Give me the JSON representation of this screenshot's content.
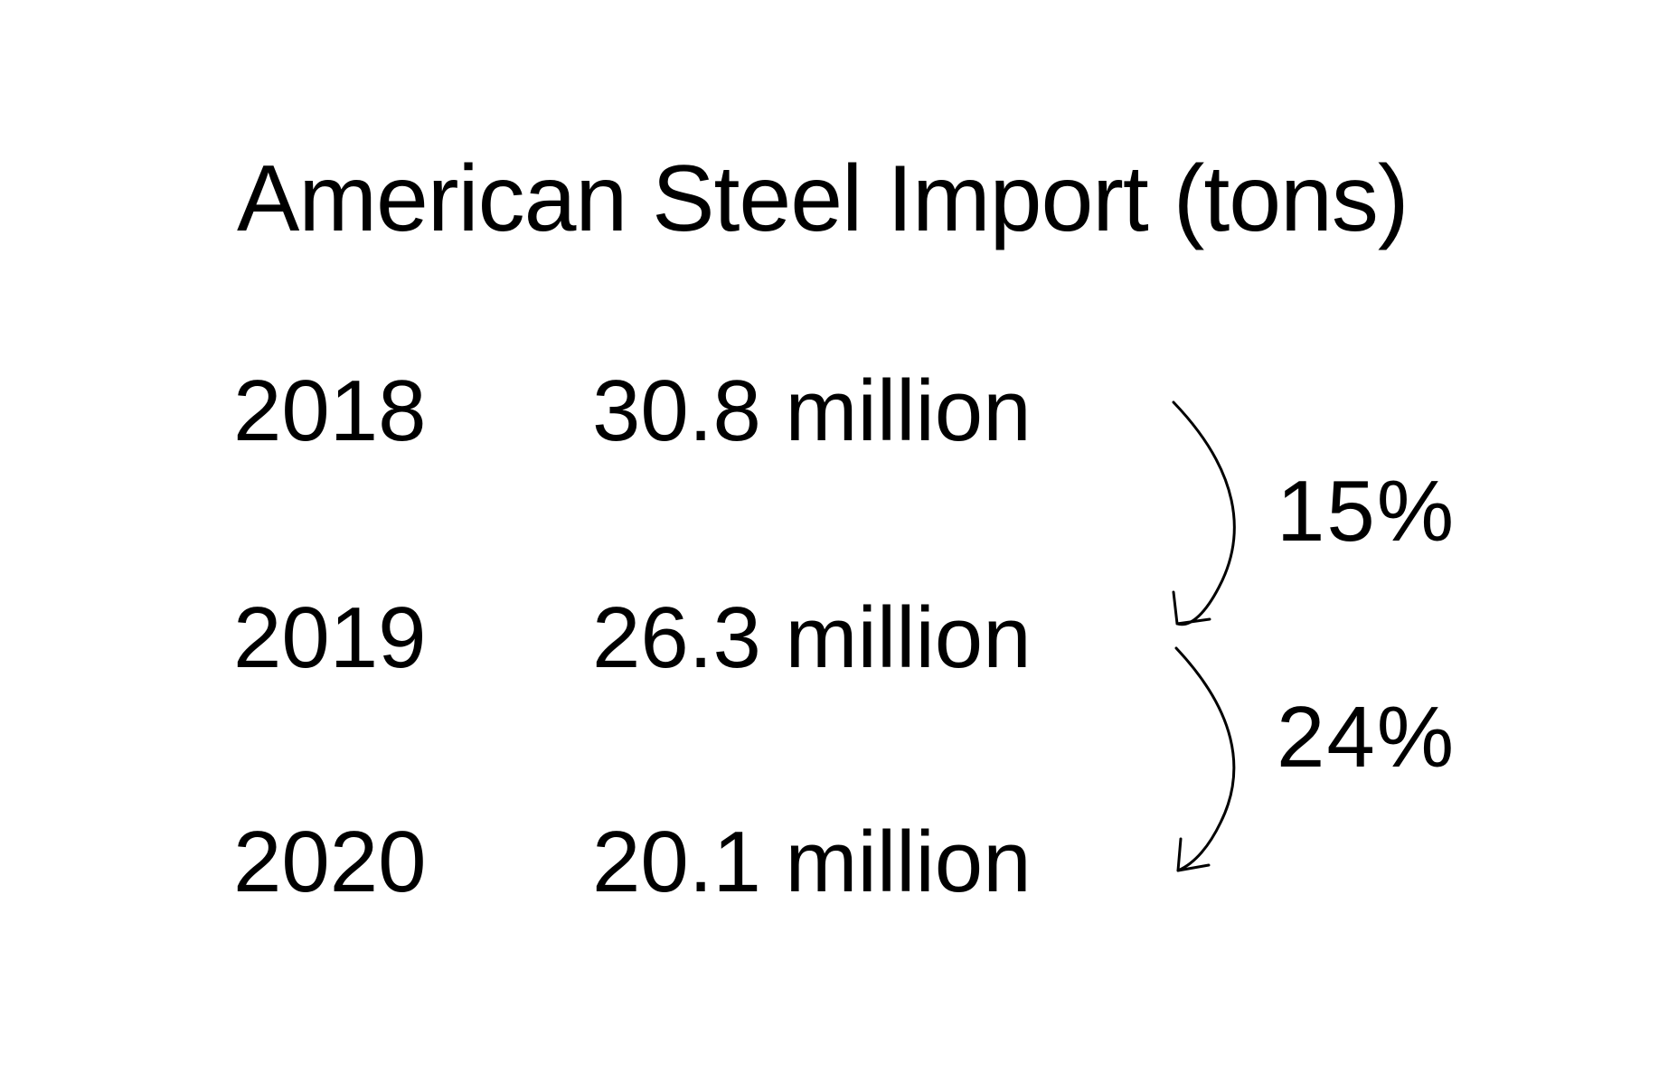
{
  "chart_data": {
    "type": "table",
    "title": "American Steel Import (tons)",
    "rows": [
      {
        "year": "2018",
        "amount": "30.8 million"
      },
      {
        "year": "2019",
        "amount": "26.3 million"
      },
      {
        "year": "2020",
        "amount": "20.1 million"
      }
    ],
    "x": [
      2018,
      2019,
      2020
    ],
    "values": [
      30.8,
      26.3,
      20.1
    ],
    "changes": [
      {
        "from": "2018",
        "to": "2019",
        "label": "15%"
      },
      {
        "from": "2019",
        "to": "2020",
        "label": "24%"
      }
    ]
  }
}
